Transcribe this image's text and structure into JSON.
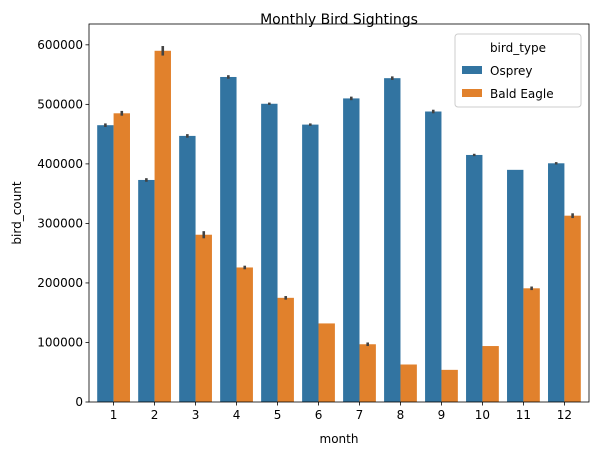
{
  "chart_data": {
    "type": "bar",
    "title": "Monthly Bird Sightings",
    "xlabel": "month",
    "ylabel": "bird_count",
    "categories": [
      "1",
      "2",
      "3",
      "4",
      "5",
      "6",
      "7",
      "8",
      "9",
      "10",
      "11",
      "12"
    ],
    "ylim": [
      0,
      635000
    ],
    "yticks": [
      0,
      100000,
      200000,
      300000,
      400000,
      500000,
      600000
    ],
    "ytick_labels": [
      "0",
      "100000",
      "200000",
      "300000",
      "400000",
      "500000",
      "600000"
    ],
    "legend_title": "bird_type",
    "legend_position": "top-right",
    "grid": false,
    "series": [
      {
        "name": "Osprey",
        "color": "#3274a1",
        "values": [
          465000,
          373000,
          447000,
          546000,
          501000,
          466000,
          510000,
          544000,
          488000,
          415000,
          390000,
          401000
        ],
        "err": [
          3000,
          3000,
          3000,
          3000,
          2000,
          2000,
          3000,
          3000,
          3000,
          2000,
          0,
          2000
        ]
      },
      {
        "name": "Bald Eagle",
        "color": "#e1812c",
        "values": [
          485000,
          590000,
          281000,
          226000,
          175000,
          132000,
          97000,
          63000,
          54000,
          94000,
          191000,
          313000
        ],
        "err": [
          4000,
          8000,
          6000,
          3000,
          3000,
          0,
          3000,
          0,
          0,
          0,
          3000,
          4000
        ]
      }
    ]
  }
}
